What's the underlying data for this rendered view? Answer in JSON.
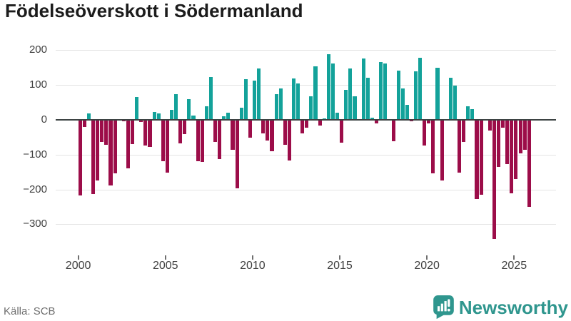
{
  "title": "Födelseöverskott i Södermanland",
  "source": "Källa: SCB",
  "brand": {
    "name": "Newsworthy"
  },
  "chart_data": {
    "type": "bar",
    "title": "Födelseöverskott i Södermanland",
    "period": "quarterly",
    "start": "2000-Q1",
    "end": "2025-Q4",
    "values": [
      -217,
      -20,
      18,
      -213,
      -174,
      -63,
      -72,
      -188,
      -153,
      0,
      -5,
      -140,
      -69,
      66,
      -7,
      -74,
      -78,
      23,
      18,
      -119,
      -152,
      29,
      73,
      -67,
      -41,
      59,
      12,
      -118,
      -120,
      39,
      123,
      -63,
      -113,
      10,
      20,
      -87,
      -196,
      34,
      117,
      -51,
      112,
      148,
      -38,
      -59,
      -91,
      74,
      91,
      -72,
      -117,
      119,
      105,
      -38,
      -22,
      68,
      153,
      -16,
      5,
      189,
      162,
      20,
      -65,
      85,
      148,
      68,
      0,
      177,
      121,
      6,
      -10,
      166,
      162,
      0,
      -61,
      141,
      90,
      44,
      -5,
      139,
      179,
      -74,
      -10,
      -154,
      149,
      -175,
      0,
      121,
      98,
      -151,
      -63,
      39,
      30,
      -227,
      -215,
      0,
      -31,
      -341,
      -136,
      -22,
      -127,
      -211,
      -169,
      -97,
      -87,
      -250
    ],
    "yticks": [
      {
        "value": 200,
        "label": "200"
      },
      {
        "value": 100,
        "label": "100"
      },
      {
        "value": 0,
        "label": "0"
      },
      {
        "value": -100,
        "label": "−100"
      },
      {
        "value": -200,
        "label": "−200"
      },
      {
        "value": -300,
        "label": "−300"
      }
    ],
    "xticks": [
      {
        "year": 2000,
        "label": "2000"
      },
      {
        "year": 2005,
        "label": "2005"
      },
      {
        "year": 2010,
        "label": "2010"
      },
      {
        "year": 2015,
        "label": "2015"
      },
      {
        "year": 2020,
        "label": "2020"
      },
      {
        "year": 2025,
        "label": "2025"
      }
    ],
    "ylim": [
      -350,
      220
    ],
    "grid": true,
    "legend": false,
    "colors": {
      "positive": "#13a29a",
      "negative": "#9c0d49",
      "zero_axis": "#3d4343",
      "gridline": "#e4e4e4",
      "brand_teal": "#2f968e"
    }
  }
}
